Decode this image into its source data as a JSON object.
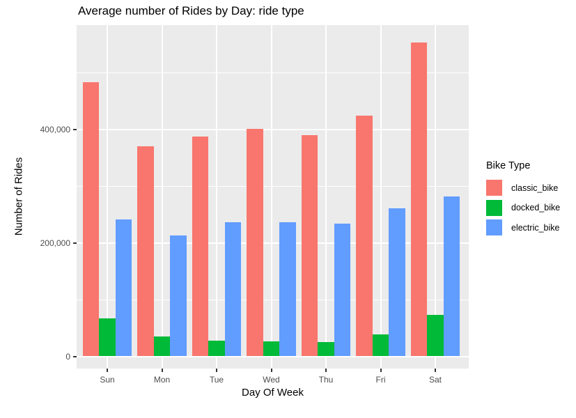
{
  "title": "Average number of Rides by Day: ride type",
  "chart_data": {
    "type": "bar",
    "title": "Average number of Rides by Day: ride type",
    "xlabel": "Day Of Week",
    "ylabel": "Number of Rides",
    "categories": [
      "Sun",
      "Mon",
      "Tue",
      "Wed",
      "Thu",
      "Fri",
      "Sat"
    ],
    "series": [
      {
        "name": "classic_bike",
        "color": "#F8766D",
        "values": [
          483000,
          370000,
          388000,
          401000,
          390000,
          424000,
          553000
        ]
      },
      {
        "name": "docked_bike",
        "color": "#00BA38",
        "values": [
          67000,
          35000,
          28000,
          26000,
          25000,
          39000,
          73000
        ]
      },
      {
        "name": "electric_bike",
        "color": "#619CFF",
        "values": [
          241000,
          213000,
          236000,
          237000,
          234000,
          261000,
          282000
        ]
      }
    ],
    "ylim": [
      0,
      580000
    ],
    "yticks": [
      {
        "value": 0,
        "label": "0"
      },
      {
        "value": 200000,
        "label": "200,000"
      },
      {
        "value": 400000,
        "label": "400,000"
      }
    ],
    "yminor": [
      100000,
      300000,
      500000
    ],
    "grid": "on",
    "legend_position": "right",
    "legend_title": "Bike Type",
    "colors": {
      "panel_background": "#EBEBEB",
      "gridline": "#FFFFFF",
      "tick_mark": "#333333",
      "tick_label": "#4D4D4D",
      "text": "#000000"
    }
  }
}
